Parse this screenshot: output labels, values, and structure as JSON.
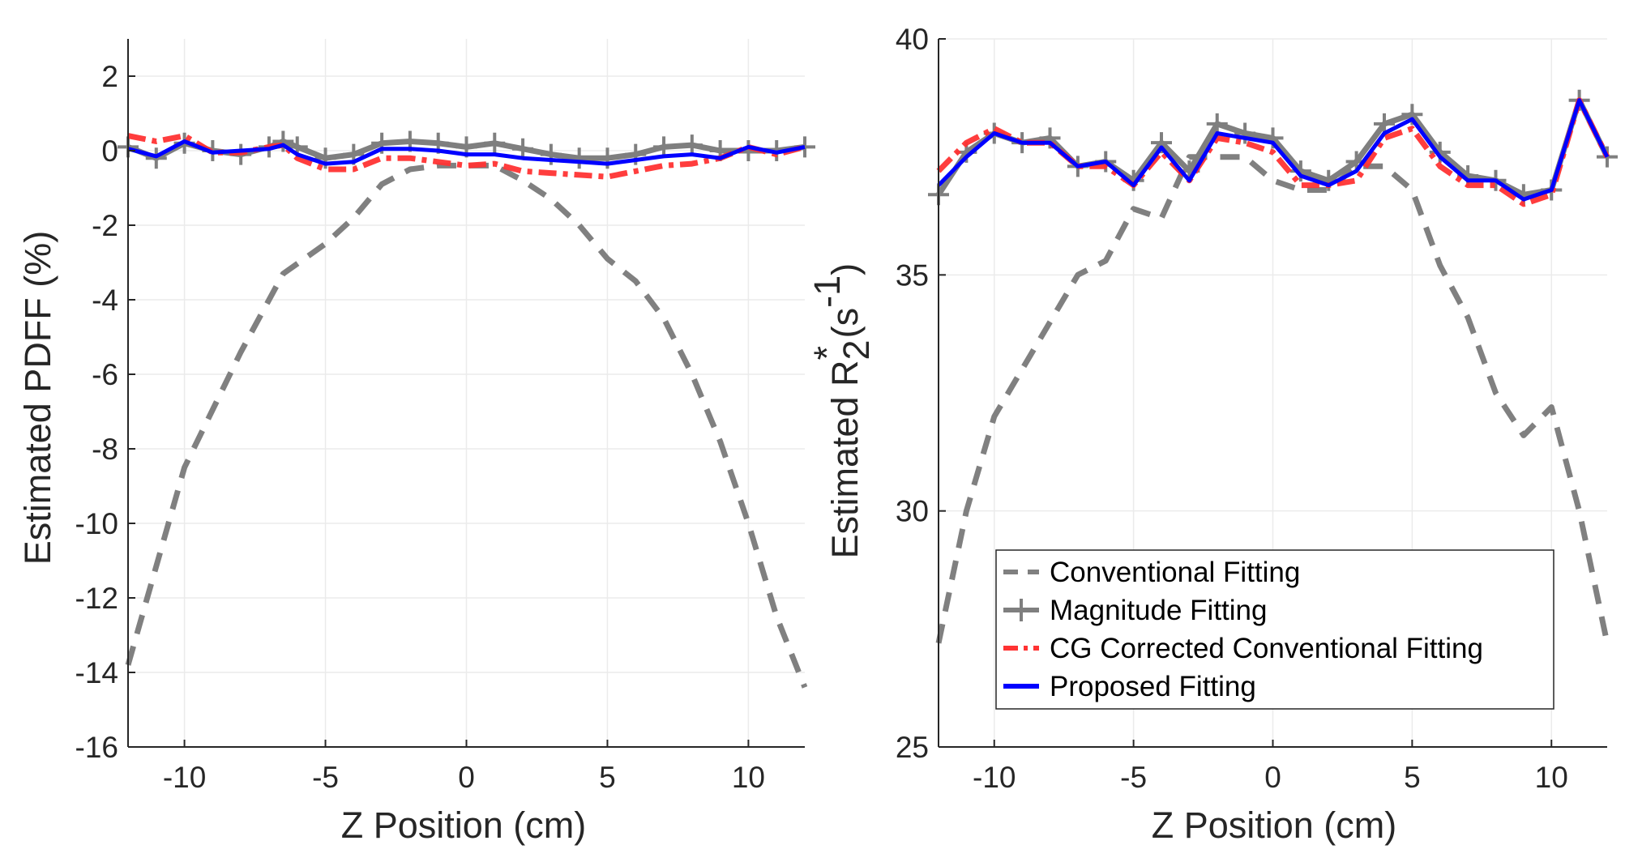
{
  "figure": {
    "legend": [
      {
        "key": "conventional",
        "label": "Conventional Fitting"
      },
      {
        "key": "magnitude",
        "label": "Magnitude Fitting"
      },
      {
        "key": "cg",
        "label": "CG Corrected Conventional Fitting"
      },
      {
        "key": "proposed",
        "label": "Proposed Fitting"
      }
    ],
    "colors": {
      "conventional": "#808080",
      "magnitude": "#7f7f7f",
      "cg": "#ff3333",
      "proposed": "#0000ff",
      "axis": "#262626",
      "grid": "#ebebeb"
    }
  },
  "chart_data": [
    {
      "type": "line",
      "title": "",
      "xlabel": "Z Position (cm)",
      "ylabel": "Estimated PDFF (%)",
      "xlim": [
        -12,
        12
      ],
      "ylim": [
        -16,
        3
      ],
      "xticks": [
        -10,
        -5,
        0,
        5,
        10
      ],
      "xtick_labels": [
        "-10",
        "-5",
        "0",
        "5",
        "10"
      ],
      "yticks": [
        -16,
        -14,
        -12,
        -10,
        -8,
        -6,
        -4,
        -2,
        0,
        2
      ],
      "ytick_labels": [
        "-16",
        "-14",
        "-12",
        "-10",
        "-8",
        "-6",
        "-4",
        "-2",
        "0",
        "2"
      ],
      "grid": true,
      "series": [
        {
          "name": "Conventional Fitting",
          "key": "conventional",
          "x": [
            -12,
            -10,
            -8,
            -6.5,
            -5,
            -4,
            -3,
            -2,
            -1,
            0,
            1,
            2,
            3,
            4,
            5,
            6,
            7,
            8,
            9,
            10,
            11,
            12
          ],
          "y": [
            -13.8,
            -8.5,
            -5.4,
            -3.3,
            -2.5,
            -1.8,
            -0.9,
            -0.5,
            -0.4,
            -0.4,
            -0.4,
            -0.8,
            -1.3,
            -2.0,
            -2.9,
            -3.5,
            -4.5,
            -6.0,
            -7.8,
            -10.0,
            -12.5,
            -14.4
          ]
        },
        {
          "name": "Magnitude Fitting",
          "key": "magnitude",
          "x": [
            -12,
            -11,
            -10,
            -9,
            -8,
            -7,
            -6.5,
            -6,
            -5,
            -4,
            -3,
            -2,
            -1,
            0,
            1,
            2,
            3,
            4,
            5,
            6,
            7,
            8,
            9,
            10,
            11,
            12
          ],
          "y": [
            0.1,
            -0.2,
            0.2,
            0.0,
            -0.1,
            0.1,
            0.25,
            0.1,
            -0.2,
            -0.1,
            0.2,
            0.25,
            0.2,
            0.1,
            0.2,
            0.05,
            -0.1,
            -0.2,
            -0.2,
            -0.1,
            0.1,
            0.15,
            0.0,
            0.0,
            0.0,
            0.1
          ]
        },
        {
          "name": "CG Corrected Conventional Fitting",
          "key": "cg",
          "x": [
            -12,
            -11,
            -10,
            -9,
            -8,
            -7,
            -6.5,
            -6,
            -5,
            -4,
            -3,
            -2,
            -1,
            0,
            1,
            2,
            3,
            4,
            5,
            6,
            7,
            8,
            9,
            10,
            11,
            12
          ],
          "y": [
            0.4,
            0.25,
            0.4,
            -0.05,
            -0.05,
            0.1,
            0.15,
            -0.2,
            -0.5,
            -0.5,
            -0.2,
            -0.2,
            -0.3,
            -0.4,
            -0.35,
            -0.55,
            -0.6,
            -0.65,
            -0.7,
            -0.55,
            -0.4,
            -0.35,
            -0.2,
            0.1,
            -0.1,
            0.1
          ]
        },
        {
          "name": "Proposed Fitting",
          "key": "proposed",
          "x": [
            -12,
            -11,
            -10,
            -9,
            -8,
            -7,
            -6.5,
            -6,
            -5,
            -4,
            -3,
            -2,
            -1,
            0,
            1,
            2,
            3,
            4,
            5,
            6,
            7,
            8,
            9,
            10,
            11,
            12
          ],
          "y": [
            0.05,
            -0.15,
            0.25,
            -0.05,
            0.0,
            0.05,
            0.15,
            -0.1,
            -0.35,
            -0.3,
            0.05,
            0.05,
            0.0,
            -0.1,
            -0.1,
            -0.2,
            -0.25,
            -0.3,
            -0.35,
            -0.25,
            -0.15,
            -0.1,
            -0.2,
            0.1,
            -0.05,
            0.1
          ]
        }
      ]
    },
    {
      "type": "line",
      "title": "",
      "xlabel": "Z Position (cm)",
      "ylabel_main": "Estimated R",
      "ylabel_sub": "2",
      "ylabel_sup": "*",
      "ylabel_unit_pre": " (s",
      "ylabel_unit_exp": "-1",
      "ylabel_unit_post": ")",
      "xlim": [
        -12,
        12
      ],
      "ylim": [
        25,
        40
      ],
      "xticks": [
        -10,
        -5,
        0,
        5,
        10
      ],
      "xtick_labels": [
        "-10",
        "-5",
        "0",
        "5",
        "10"
      ],
      "yticks": [
        25,
        30,
        35,
        40
      ],
      "ytick_labels": [
        "25",
        "30",
        "35",
        "40"
      ],
      "grid": true,
      "legend_position": "bottom-right",
      "series": [
        {
          "name": "Conventional Fitting",
          "key": "conventional",
          "x": [
            -12,
            -11,
            -10,
            -9,
            -8,
            -7,
            -6,
            -5,
            -4,
            -3,
            -2,
            -1,
            0,
            1,
            2,
            3,
            4,
            5,
            6,
            7,
            8,
            9,
            10,
            11,
            12
          ],
          "y": [
            27.2,
            30.0,
            32.0,
            33.0,
            34.0,
            35.0,
            35.3,
            36.4,
            36.2,
            37.5,
            37.5,
            37.5,
            37.0,
            36.8,
            36.8,
            37.3,
            37.3,
            36.8,
            35.2,
            34.1,
            32.5,
            31.6,
            32.2,
            30.0,
            27.2
          ]
        },
        {
          "name": "Magnitude Fitting",
          "key": "magnitude",
          "x": [
            -12,
            -11,
            -10,
            -9,
            -8,
            -7,
            -6,
            -5,
            -4,
            -3,
            -2,
            -1,
            0,
            1,
            2,
            3,
            4,
            5,
            6,
            7,
            8,
            9,
            10,
            11,
            12
          ],
          "y": [
            36.7,
            37.6,
            38.0,
            37.8,
            37.9,
            37.3,
            37.4,
            37.0,
            37.8,
            37.2,
            38.2,
            38.0,
            37.9,
            37.2,
            37.0,
            37.4,
            38.2,
            38.4,
            37.6,
            37.1,
            37.0,
            36.7,
            36.8,
            38.7,
            37.5
          ]
        },
        {
          "name": "CG Corrected Conventional Fitting",
          "key": "cg",
          "x": [
            -12,
            -11,
            -10,
            -9,
            -8,
            -7,
            -6,
            -5,
            -4,
            -3,
            -2,
            -1,
            0,
            1,
            2,
            3,
            4,
            5,
            6,
            7,
            8,
            9,
            10,
            11,
            12
          ],
          "y": [
            37.2,
            37.8,
            38.1,
            37.8,
            37.8,
            37.3,
            37.3,
            36.9,
            37.6,
            37.0,
            37.9,
            37.8,
            37.6,
            36.9,
            36.9,
            37.0,
            37.9,
            38.1,
            37.3,
            36.9,
            36.9,
            36.5,
            36.7,
            38.7,
            37.5
          ]
        },
        {
          "name": "Proposed Fitting",
          "key": "proposed",
          "x": [
            -12,
            -11,
            -10,
            -9,
            -8,
            -7,
            -6,
            -5,
            -4,
            -3,
            -2,
            -1,
            0,
            1,
            2,
            3,
            4,
            5,
            6,
            7,
            8,
            9,
            10,
            11,
            12
          ],
          "y": [
            36.9,
            37.5,
            38.0,
            37.8,
            37.8,
            37.3,
            37.4,
            36.9,
            37.7,
            37.0,
            38.0,
            37.9,
            37.8,
            37.1,
            36.9,
            37.2,
            38.0,
            38.3,
            37.5,
            37.0,
            37.0,
            36.6,
            36.8,
            38.7,
            37.5
          ]
        }
      ]
    }
  ]
}
